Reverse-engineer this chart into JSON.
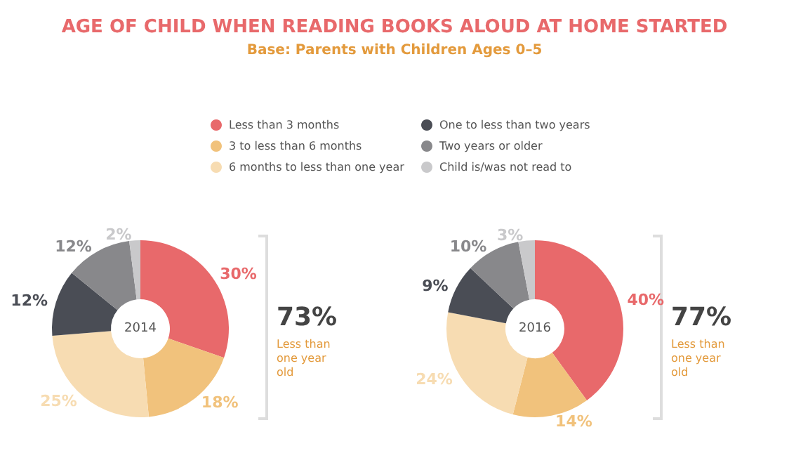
{
  "chart_data": {
    "type": "donut",
    "title": "AGE OF CHILD WHEN READING BOOKS ALOUD AT HOME STARTED",
    "subtitle": "Base: Parents with Children Ages 0–5",
    "legend": "top",
    "categories": [
      "Less than 3 months",
      "3 to less than 6 months",
      "6 months to less than one year",
      "One to less than two years",
      "Two years or older",
      "Child is/was not read to"
    ],
    "colors": [
      "#e8696b",
      "#f1c27c",
      "#f7dcb2",
      "#4a4d55",
      "#88888b",
      "#c9c9cb"
    ],
    "series": [
      {
        "name": "2014",
        "values": [
          30,
          18,
          25,
          12,
          12,
          2
        ],
        "value_labels": [
          "30%",
          "18%",
          "25%",
          "12%",
          "12%",
          "2%"
        ]
      },
      {
        "name": "2016",
        "values": [
          40,
          14,
          24,
          9,
          10,
          3
        ],
        "value_labels": [
          "40%",
          "14%",
          "24%",
          "9%",
          "10%",
          "3%"
        ]
      }
    ],
    "annotations": [
      "73%",
      "Less than one year old",
      "77%",
      "Less than one year old"
    ]
  }
}
